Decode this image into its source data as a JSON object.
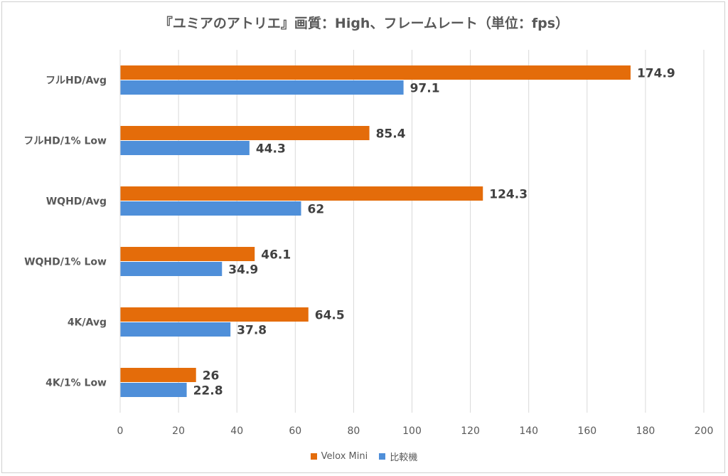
{
  "chart_data": {
    "type": "bar",
    "orientation": "horizontal",
    "title": "『ユミアのアトリエ』画質：High、フレームレート（単位：fps）",
    "categories": [
      "フルHD/Avg",
      "フルHD/1% Low",
      "WQHD/Avg",
      "WQHD/1% Low",
      "4K/Avg",
      "4K/1% Low"
    ],
    "series": [
      {
        "name": "Velox Mini",
        "color": "#e46c0a",
        "values": [
          174.9,
          85.4,
          124.3,
          46.1,
          64.5,
          26
        ]
      },
      {
        "name": "比較機",
        "color": "#4f8fd9",
        "values": [
          97.1,
          44.3,
          62,
          34.9,
          37.8,
          22.8
        ]
      }
    ],
    "data_labels": [
      [
        "174.9",
        "85.4",
        "124.3",
        "46.1",
        "64.5",
        "26"
      ],
      [
        "97.1",
        "44.3",
        "62",
        "34.9",
        "37.8",
        "22.8"
      ]
    ],
    "xlim": [
      0,
      200
    ],
    "x_ticks": [
      0,
      20,
      40,
      60,
      80,
      100,
      120,
      140,
      160,
      180,
      200
    ],
    "grid": "vertical",
    "legend_position": "bottom"
  }
}
